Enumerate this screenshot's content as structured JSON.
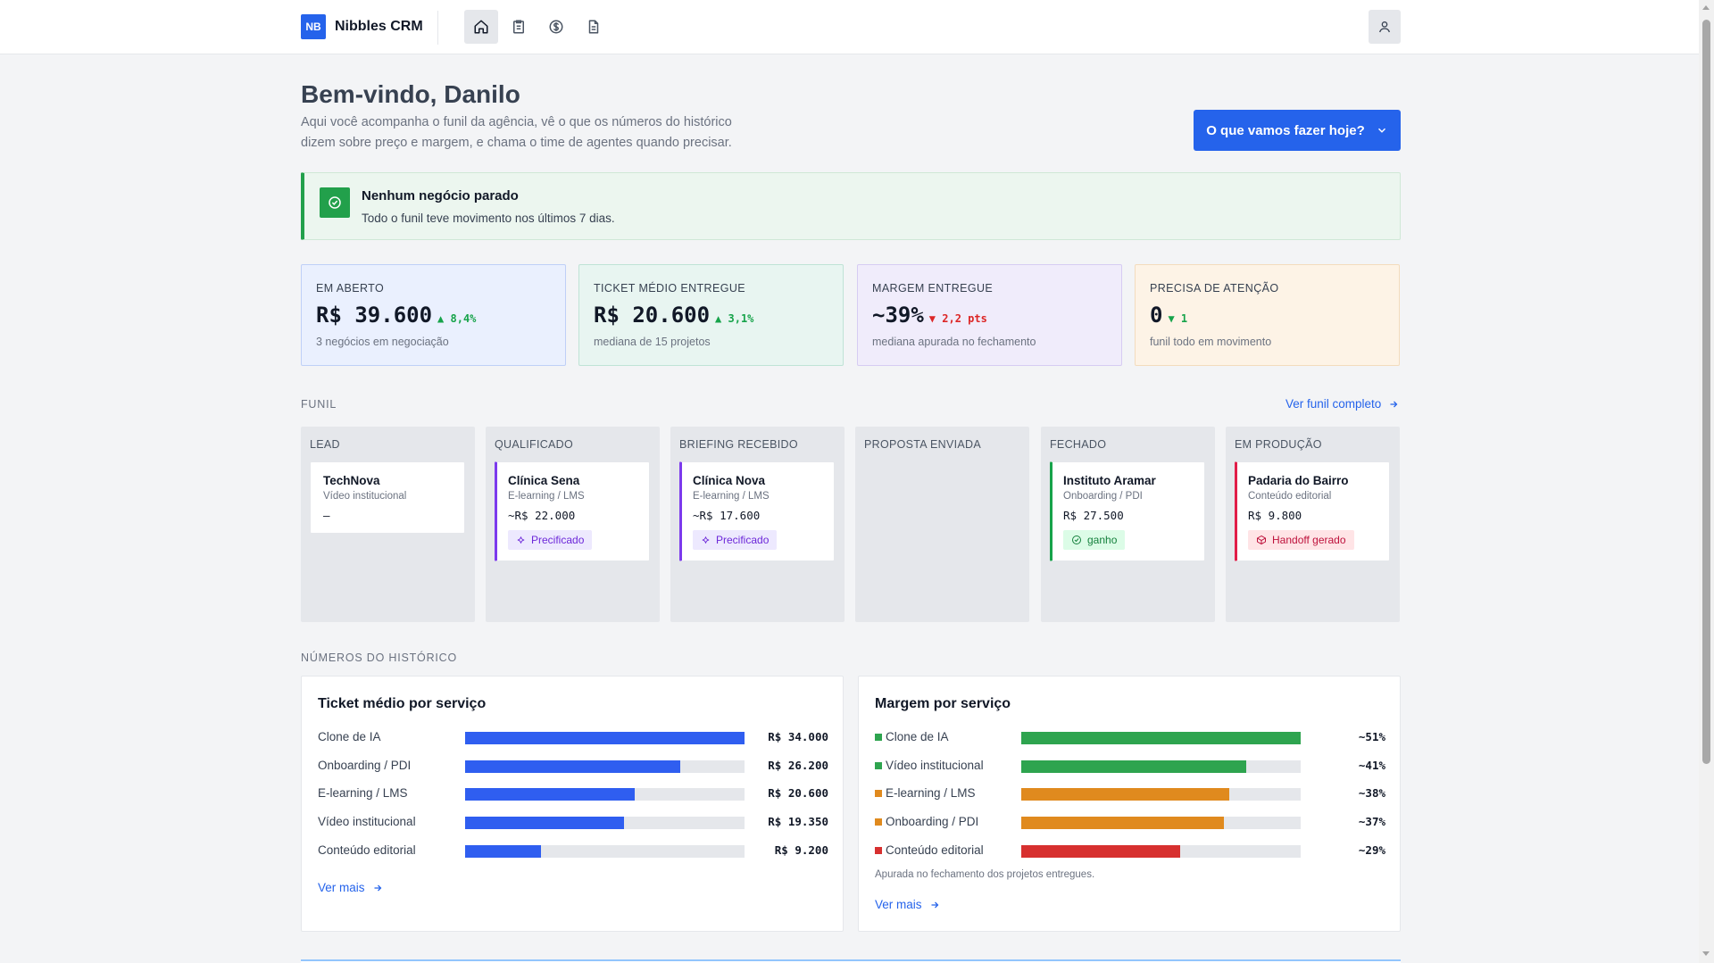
{
  "app": {
    "logo_text": "NB",
    "name": "Nibbles CRM",
    "nav": [
      "home-icon",
      "clipboard-icon",
      "dollar-icon",
      "document-icon"
    ],
    "user_icon": "user-icon"
  },
  "header": {
    "title": "Bem-vindo, Danilo",
    "subtitle": "Aqui você acompanha o funil da agência, vê o que os números do histórico dizem sobre preço e margem, e chama o time de agentes quando precisar.",
    "cta_label": "O que vamos fazer hoje?"
  },
  "alert": {
    "title": "Nenhum negócio parado",
    "text": "Todo o funil teve movimento nos últimos 7 dias."
  },
  "kpis": [
    {
      "label": "EM ABERTO",
      "value": "R$ 39.600",
      "delta": "▲ 8,4%",
      "sub": "3 negócios em negociação",
      "bg": "#eaf0fe",
      "border": "#bfd0f7"
    },
    {
      "label": "TICKET MÉDIO ENTREGUE",
      "value": "R$ 20.600",
      "delta": "▲ 3,1%",
      "sub": "mediana de 15 projetos",
      "bg": "#e8f5f1",
      "border": "#bfe3d6"
    },
    {
      "label": "MARGEM ENTREGUE",
      "value": "~39%",
      "delta": "▼ 2,2 pts",
      "sub": "mediana apurada no fechamento",
      "bg": "#f0ecfb",
      "border": "#d6ccf2"
    },
    {
      "label": "PRECISA DE ATENÇÃO",
      "value": "0",
      "delta": "▼ 1",
      "sub": "funil todo em movimento",
      "bg": "#fdf3e6",
      "border": "#f3dcbd"
    }
  ],
  "funnel": {
    "label": "FUNIL",
    "link": "Ver funil completo",
    "columns": [
      {
        "title": "LEAD",
        "deal": {
          "name": "TechNova",
          "service": "Vídeo institucional",
          "value": "–"
        }
      },
      {
        "title": "QUALIFICADO",
        "deal": {
          "name": "Clínica Sena",
          "service": "E-learning / LMS",
          "value": "~R$ 22.000",
          "badge": "Precificado"
        }
      },
      {
        "title": "BRIEFING RECEBIDO",
        "deal": {
          "name": "Clínica Nova",
          "service": "E-learning / LMS",
          "value": "~R$ 17.600",
          "badge": "Precificado"
        }
      },
      {
        "title": "PROPOSTA ENVIADA"
      },
      {
        "title": "FECHADO",
        "deal": {
          "name": "Instituto Aramar",
          "service": "Onboarding / PDI",
          "value": "R$ 27.500",
          "badge": "ganho"
        }
      },
      {
        "title": "EM PRODUÇÃO",
        "deal": {
          "name": "Padaria do Bairro",
          "service": "Conteúdo editorial",
          "value": "R$ 9.800",
          "badge": "Handoff gerado"
        }
      }
    ]
  },
  "history": {
    "label": "NÚMEROS DO HISTÓRICO",
    "ticket": {
      "title": "Ticket médio por serviço",
      "link": "Ver mais",
      "color": "#2f5ef0",
      "rows": [
        {
          "label": "Clone de IA",
          "value": "R$ 34.000",
          "amount": 34000
        },
        {
          "label": "Onboarding / PDI",
          "value": "R$ 26.200",
          "amount": 26200
        },
        {
          "label": "E-learning / LMS",
          "value": "R$ 20.600",
          "amount": 20600
        },
        {
          "label": "Vídeo institucional",
          "value": "R$ 19.350",
          "amount": 19350
        },
        {
          "label": "Conteúdo editorial",
          "value": "R$ 9.200",
          "amount": 9200
        }
      ]
    },
    "margin": {
      "title": "Margem por serviço",
      "note": "Apurada no fechamento dos projetos entregues.",
      "link": "Ver mais",
      "rows": [
        {
          "label": "Clone de IA",
          "value": "~51%",
          "amount": 51,
          "color": "#2ea44f"
        },
        {
          "label": "Vídeo institucional",
          "value": "~41%",
          "amount": 41,
          "color": "#2ea44f"
        },
        {
          "label": "E-learning / LMS",
          "value": "~38%",
          "amount": 38,
          "color": "#e08a1e"
        },
        {
          "label": "Onboarding / PDI",
          "value": "~37%",
          "amount": 37,
          "color": "#e08a1e"
        },
        {
          "label": "Conteúdo editorial",
          "value": "~29%",
          "amount": 29,
          "color": "#d7302f"
        }
      ]
    }
  }
}
